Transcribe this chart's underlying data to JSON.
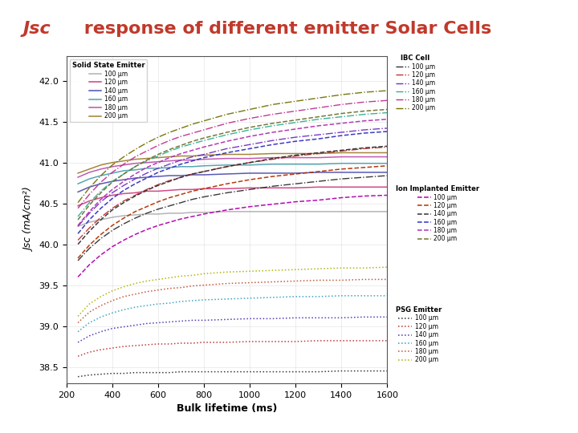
{
  "title": "Jsc response of different emitter Solar Cells",
  "title_color": "#c0392b",
  "header_bg_color": "#7f9899",
  "xlabel": "Bulk lifetime (ms)",
  "ylabel": "Jsc (mA/cm²)",
  "xlim": [
    200,
    1600
  ],
  "ylim": [
    38.3,
    42.3
  ],
  "yticks": [
    38.5,
    39.0,
    39.5,
    40.0,
    40.5,
    41.0,
    41.5,
    42.0
  ],
  "xticks": [
    200,
    400,
    600,
    800,
    1000,
    1200,
    1400,
    1600
  ],
  "x_data": [
    250,
    300,
    350,
    400,
    450,
    500,
    550,
    600,
    650,
    700,
    750,
    800,
    900,
    1000,
    1100,
    1200,
    1300,
    1400,
    1500,
    1600
  ],
  "thicknesses": [
    "100",
    "120",
    "140",
    "160",
    "180",
    "200"
  ],
  "thickness_labels": [
    "100 μm",
    "120 μm",
    "140 μm",
    "160 μm",
    "180 μm",
    "200 μm"
  ],
  "solid_state_colors": [
    "#b0b0b0",
    "#d04080",
    "#5050b0",
    "#50a0b0",
    "#c050b0",
    "#a08030"
  ],
  "ibc_colors": [
    "#303030",
    "#c03030",
    "#7030c0",
    "#30b090",
    "#c03090",
    "#707000"
  ],
  "ion_impl_colors": [
    "#b000b0",
    "#b03000",
    "#303030",
    "#3030c0",
    "#b030b0",
    "#707030"
  ],
  "psg_colors": [
    "#303030",
    "#c03030",
    "#5030b0",
    "#30a0c0",
    "#c05030",
    "#b0b000"
  ],
  "solid_state_data": {
    "100": [
      40.22,
      40.27,
      40.3,
      40.33,
      40.35,
      40.36,
      40.37,
      40.37,
      40.38,
      40.38,
      40.39,
      40.39,
      40.4,
      40.4,
      40.4,
      40.4,
      40.4,
      40.4,
      40.4,
      40.4
    ],
    "120": [
      40.47,
      40.53,
      40.57,
      40.6,
      40.62,
      40.63,
      40.65,
      40.65,
      40.66,
      40.67,
      40.67,
      40.68,
      40.68,
      40.69,
      40.69,
      40.69,
      40.7,
      40.7,
      40.7,
      40.7
    ],
    "140": [
      40.64,
      40.7,
      40.74,
      40.77,
      40.79,
      40.81,
      40.82,
      40.83,
      40.84,
      40.84,
      40.85,
      40.85,
      40.86,
      40.87,
      40.87,
      40.87,
      40.88,
      40.88,
      40.88,
      40.88
    ],
    "160": [
      40.74,
      40.8,
      40.84,
      40.87,
      40.9,
      40.91,
      40.93,
      40.93,
      40.94,
      40.95,
      40.95,
      40.96,
      40.97,
      40.97,
      40.98,
      40.98,
      40.98,
      40.99,
      40.99,
      40.99
    ],
    "180": [
      40.82,
      40.88,
      40.92,
      40.95,
      40.97,
      40.99,
      41.0,
      41.01,
      41.02,
      41.03,
      41.03,
      41.04,
      41.05,
      41.05,
      41.06,
      41.06,
      41.06,
      41.07,
      41.07,
      41.07
    ],
    "200": [
      40.87,
      40.92,
      40.97,
      41.0,
      41.02,
      41.04,
      41.05,
      41.06,
      41.07,
      41.08,
      41.08,
      41.09,
      41.1,
      41.1,
      41.11,
      41.11,
      41.11,
      41.12,
      41.12,
      41.12
    ]
  },
  "ibc_data": {
    "100": [
      39.8,
      39.95,
      40.07,
      40.17,
      40.25,
      40.32,
      40.38,
      40.43,
      40.47,
      40.51,
      40.55,
      40.58,
      40.63,
      40.67,
      40.71,
      40.74,
      40.77,
      40.8,
      40.82,
      40.84
    ],
    "120": [
      40.05,
      40.2,
      40.33,
      40.44,
      40.53,
      40.6,
      40.67,
      40.73,
      40.78,
      40.82,
      40.86,
      40.89,
      40.95,
      41.0,
      41.04,
      41.08,
      41.11,
      41.14,
      41.17,
      41.19
    ],
    "140": [
      40.22,
      40.38,
      40.52,
      40.63,
      40.72,
      40.8,
      40.87,
      40.93,
      40.98,
      41.03,
      41.07,
      41.1,
      41.17,
      41.22,
      41.27,
      41.31,
      41.34,
      41.37,
      41.4,
      41.42
    ],
    "160": [
      40.34,
      40.51,
      40.65,
      40.77,
      40.86,
      40.95,
      41.02,
      41.08,
      41.14,
      41.19,
      41.23,
      41.27,
      41.34,
      41.4,
      41.45,
      41.49,
      41.53,
      41.56,
      41.59,
      41.61
    ],
    "180": [
      40.44,
      40.61,
      40.76,
      40.88,
      40.98,
      41.07,
      41.14,
      41.21,
      41.27,
      41.32,
      41.36,
      41.4,
      41.48,
      41.54,
      41.59,
      41.63,
      41.67,
      41.71,
      41.74,
      41.76
    ],
    "200": [
      40.51,
      40.69,
      40.84,
      40.97,
      41.07,
      41.16,
      41.24,
      41.31,
      41.37,
      41.42,
      41.47,
      41.51,
      41.59,
      41.65,
      41.71,
      41.75,
      41.79,
      41.83,
      41.86,
      41.88
    ]
  },
  "ion_impl_data": {
    "100": [
      39.6,
      39.75,
      39.87,
      39.97,
      40.05,
      40.12,
      40.18,
      40.23,
      40.27,
      40.31,
      40.34,
      40.37,
      40.42,
      40.46,
      40.49,
      40.52,
      40.54,
      40.57,
      40.59,
      40.6
    ],
    "120": [
      39.83,
      39.99,
      40.12,
      40.23,
      40.32,
      40.4,
      40.46,
      40.52,
      40.57,
      40.61,
      40.65,
      40.68,
      40.74,
      40.79,
      40.83,
      40.86,
      40.89,
      40.92,
      40.94,
      40.96
    ],
    "140": [
      40.0,
      40.16,
      40.3,
      40.42,
      40.51,
      40.59,
      40.66,
      40.72,
      40.77,
      40.82,
      40.86,
      40.89,
      40.95,
      41.0,
      41.05,
      41.09,
      41.12,
      41.15,
      41.18,
      41.2
    ],
    "160": [
      40.13,
      40.3,
      40.44,
      40.56,
      40.66,
      40.74,
      40.81,
      40.88,
      40.93,
      40.98,
      41.02,
      41.06,
      41.12,
      41.17,
      41.22,
      41.26,
      41.29,
      41.33,
      41.36,
      41.38
    ],
    "180": [
      40.23,
      40.4,
      40.55,
      40.67,
      40.77,
      40.86,
      40.94,
      41.0,
      41.06,
      41.11,
      41.15,
      41.19,
      41.26,
      41.32,
      41.37,
      41.41,
      41.45,
      41.48,
      41.51,
      41.53
    ],
    "200": [
      40.3,
      40.48,
      40.63,
      40.76,
      40.86,
      40.95,
      41.03,
      41.1,
      41.16,
      41.21,
      41.26,
      41.3,
      41.37,
      41.43,
      41.48,
      41.52,
      41.56,
      41.6,
      41.63,
      41.65
    ]
  },
  "psg_data": {
    "100": [
      38.38,
      38.4,
      38.41,
      38.42,
      38.42,
      38.43,
      38.43,
      38.43,
      38.43,
      38.44,
      38.44,
      38.44,
      38.44,
      38.44,
      38.44,
      38.44,
      38.44,
      38.45,
      38.45,
      38.45
    ],
    "120": [
      38.63,
      38.68,
      38.71,
      38.73,
      38.75,
      38.76,
      38.77,
      38.78,
      38.78,
      38.79,
      38.79,
      38.8,
      38.8,
      38.81,
      38.81,
      38.81,
      38.82,
      38.82,
      38.82,
      38.82
    ],
    "140": [
      38.8,
      38.88,
      38.93,
      38.97,
      38.99,
      39.01,
      39.03,
      39.04,
      39.05,
      39.06,
      39.07,
      39.07,
      39.08,
      39.09,
      39.09,
      39.1,
      39.1,
      39.1,
      39.11,
      39.11
    ],
    "160": [
      38.93,
      39.04,
      39.11,
      39.16,
      39.2,
      39.23,
      39.25,
      39.27,
      39.28,
      39.3,
      39.31,
      39.32,
      39.33,
      39.34,
      39.35,
      39.36,
      39.36,
      39.37,
      39.37,
      39.37
    ],
    "180": [
      39.04,
      39.17,
      39.25,
      39.31,
      39.36,
      39.39,
      39.42,
      39.44,
      39.46,
      39.47,
      39.49,
      39.5,
      39.52,
      39.53,
      39.54,
      39.55,
      39.56,
      39.56,
      39.57,
      39.57
    ],
    "200": [
      39.12,
      39.27,
      39.36,
      39.43,
      39.48,
      39.52,
      39.55,
      39.57,
      39.59,
      39.61,
      39.62,
      39.64,
      39.66,
      39.67,
      39.68,
      39.69,
      39.7,
      39.71,
      39.71,
      39.72
    ]
  }
}
